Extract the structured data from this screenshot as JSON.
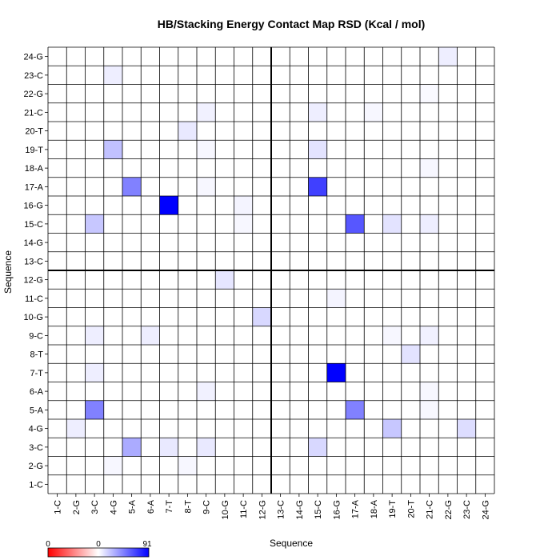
{
  "chart_data": {
    "type": "heatmap",
    "title": "HB/Stacking Energy Contact Map RSD (Kcal / mol)",
    "xlabel": "Sequence",
    "ylabel": "Sequence",
    "labels": [
      "1-C",
      "2-G",
      "3-C",
      "4-G",
      "5-A",
      "6-A",
      "7-T",
      "8-T",
      "9-C",
      "10-G",
      "11-C",
      "12-G",
      "13-C",
      "14-G",
      "15-C",
      "16-G",
      "17-A",
      "18-A",
      "19-T",
      "20-T",
      "21-C",
      "22-G",
      "23-C",
      "24-G"
    ],
    "grid": true,
    "divider_after_index": 12,
    "color_scale": {
      "min_label": "0",
      "mid_label": "0",
      "max_label": "91",
      "max": 91,
      "low_color": "#ff0000",
      "mid_color": "#ffffff",
      "high_color": "#0000ff"
    },
    "cells": [
      [
        "4-G",
        "2-G",
        3
      ],
      [
        "8-T",
        "2-G",
        3
      ],
      [
        "5-A",
        "3-C",
        30
      ],
      [
        "7-T",
        "3-C",
        8
      ],
      [
        "9-C",
        "3-C",
        8
      ],
      [
        "15-C",
        "3-C",
        14
      ],
      [
        "2-G",
        "4-G",
        6
      ],
      [
        "19-T",
        "4-G",
        20
      ],
      [
        "23-C",
        "4-G",
        12
      ],
      [
        "3-C",
        "5-A",
        45
      ],
      [
        "17-A",
        "5-A",
        45
      ],
      [
        "21-C",
        "5-A",
        3
      ],
      [
        "9-C",
        "6-A",
        5
      ],
      [
        "21-C",
        "6-A",
        3
      ],
      [
        "3-C",
        "7-T",
        6
      ],
      [
        "16-G",
        "7-T",
        91
      ],
      [
        "20-T",
        "8-T",
        10
      ],
      [
        "3-C",
        "9-C",
        6
      ],
      [
        "6-A",
        "9-C",
        6
      ],
      [
        "21-C",
        "9-C",
        5
      ],
      [
        "19-T",
        "9-C",
        3
      ],
      [
        "12-G",
        "10-G",
        14
      ],
      [
        "16-G",
        "11-C",
        4
      ],
      [
        "10-G",
        "12-G",
        9
      ],
      [
        "3-C",
        "15-C",
        20
      ],
      [
        "17-A",
        "15-C",
        60
      ],
      [
        "19-T",
        "15-C",
        10
      ],
      [
        "21-C",
        "15-C",
        6
      ],
      [
        "11-C",
        "15-C",
        3
      ],
      [
        "7-T",
        "16-G",
        91
      ],
      [
        "11-C",
        "16-G",
        4
      ],
      [
        "5-A",
        "17-A",
        45
      ],
      [
        "15-C",
        "17-A",
        68
      ],
      [
        "9-C",
        "17-A",
        3
      ],
      [
        "21-C",
        "18-A",
        3
      ],
      [
        "4-G",
        "19-T",
        22
      ],
      [
        "15-C",
        "19-T",
        10
      ],
      [
        "9-C",
        "19-T",
        3
      ],
      [
        "8-T",
        "20-T",
        8
      ],
      [
        "9-C",
        "21-C",
        5
      ],
      [
        "15-C",
        "21-C",
        6
      ],
      [
        "18-A",
        "21-C",
        3
      ],
      [
        "21-C",
        "22-G",
        2
      ],
      [
        "4-G",
        "23-C",
        6
      ],
      [
        "22-G",
        "24-G",
        6
      ]
    ]
  }
}
